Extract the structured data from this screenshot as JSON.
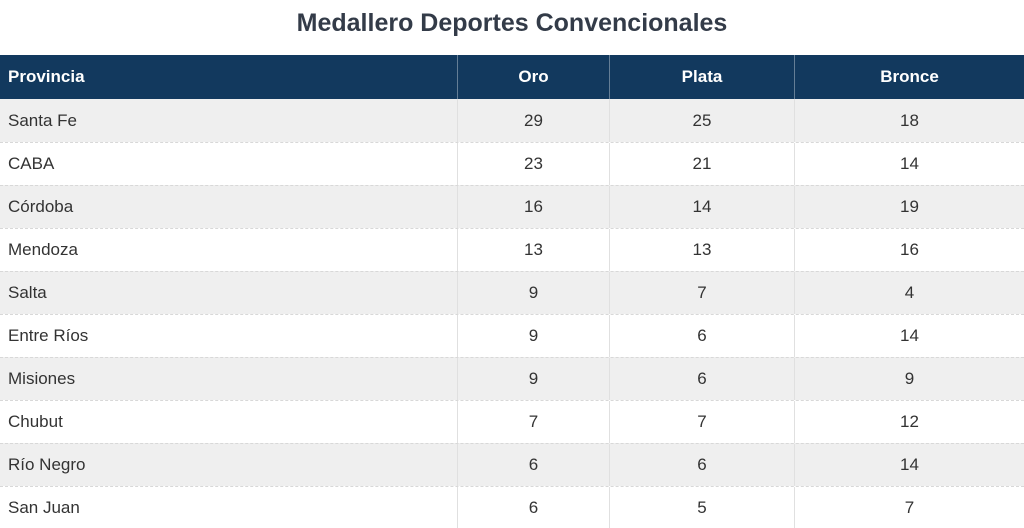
{
  "page": {
    "title": "Medallero Deportes Convencionales"
  },
  "table": {
    "columns": [
      {
        "key": "provincia",
        "label": "Provincia",
        "align": "left"
      },
      {
        "key": "oro",
        "label": "Oro",
        "align": "center"
      },
      {
        "key": "plata",
        "label": "Plata",
        "align": "center"
      },
      {
        "key": "bronce",
        "label": "Bronce",
        "align": "center"
      }
    ],
    "rows": [
      {
        "provincia": "Santa Fe",
        "oro": 29,
        "plata": 25,
        "bronce": 18
      },
      {
        "provincia": "CABA",
        "oro": 23,
        "plata": 21,
        "bronce": 14
      },
      {
        "provincia": "Córdoba",
        "oro": 16,
        "plata": 14,
        "bronce": 19
      },
      {
        "provincia": "Mendoza",
        "oro": 13,
        "plata": 13,
        "bronce": 16
      },
      {
        "provincia": "Salta",
        "oro": 9,
        "plata": 7,
        "bronce": 4
      },
      {
        "provincia": "Entre Ríos",
        "oro": 9,
        "plata": 6,
        "bronce": 14
      },
      {
        "provincia": "Misiones",
        "oro": 9,
        "plata": 6,
        "bronce": 9
      },
      {
        "provincia": "Chubut",
        "oro": 7,
        "plata": 7,
        "bronce": 12
      },
      {
        "provincia": "Río Negro",
        "oro": 6,
        "plata": 6,
        "bronce": 14
      },
      {
        "provincia": "San Juan",
        "oro": 6,
        "plata": 5,
        "bronce": 7
      }
    ]
  },
  "colors": {
    "header_bg": "#12395E",
    "header_text": "#FFFFFF",
    "row_stripe": "#EFEFEF",
    "row_white": "#FFFFFF",
    "row_text": "#333333",
    "title_text": "#333B48"
  },
  "chart_data": {
    "type": "table",
    "title": "Medallero Deportes Convencionales",
    "columns": [
      "Provincia",
      "Oro",
      "Plata",
      "Bronce"
    ],
    "rows": [
      [
        "Santa Fe",
        29,
        25,
        18
      ],
      [
        "CABA",
        23,
        21,
        14
      ],
      [
        "Córdoba",
        16,
        14,
        19
      ],
      [
        "Mendoza",
        13,
        13,
        16
      ],
      [
        "Salta",
        9,
        7,
        4
      ],
      [
        "Entre Ríos",
        9,
        6,
        14
      ],
      [
        "Misiones",
        9,
        6,
        9
      ],
      [
        "Chubut",
        7,
        7,
        12
      ],
      [
        "Río Negro",
        6,
        6,
        14
      ],
      [
        "San Juan",
        6,
        5,
        7
      ]
    ]
  }
}
